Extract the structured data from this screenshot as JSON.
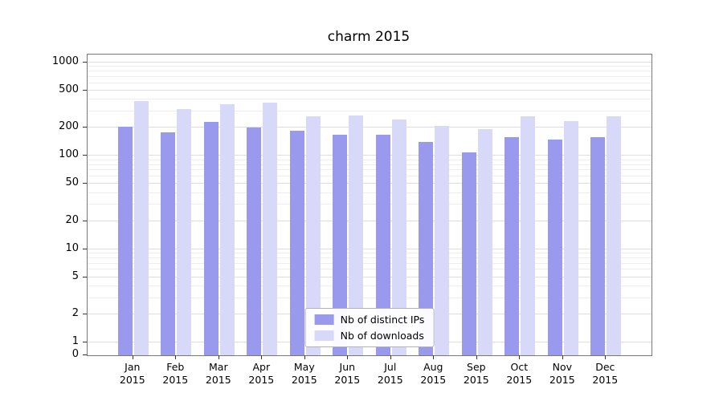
{
  "chart_data": {
    "type": "bar",
    "title": "charm 2015",
    "categories": [
      "Jan",
      "Feb",
      "Mar",
      "Apr",
      "May",
      "Jun",
      "Jul",
      "Aug",
      "Sep",
      "Oct",
      "Nov",
      "Dec"
    ],
    "year": "2015",
    "series": [
      {
        "name": "Nb of distinct IPs",
        "color": "#9999ee",
        "values": [
          205,
          180,
          230,
          200,
          185,
          170,
          170,
          140,
          110,
          160,
          150,
          160
        ]
      },
      {
        "name": "Nb of downloads",
        "color": "#d8d8f8",
        "values": [
          390,
          320,
          355,
          370,
          265,
          270,
          245,
          210,
          195,
          265,
          235,
          265
        ]
      }
    ],
    "yscale": "log",
    "yticks": [
      0,
      1,
      2,
      5,
      10,
      20,
      50,
      100,
      200,
      500,
      1000
    ],
    "ylim": [
      0,
      1000
    ],
    "grid": true,
    "legend_position": "lower center"
  }
}
